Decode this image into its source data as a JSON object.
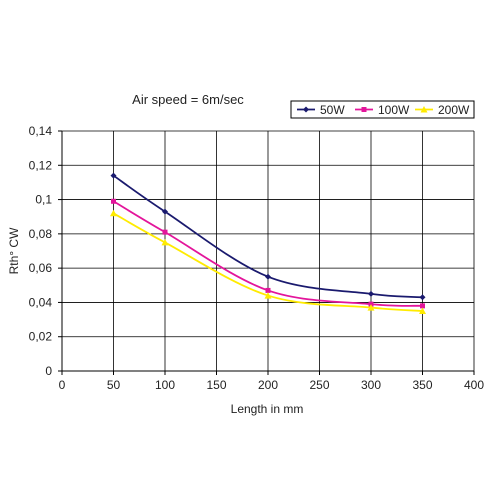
{
  "chart_data": {
    "type": "line",
    "title": "Air speed = 6m/sec",
    "xlabel": "Length in mm",
    "ylabel": "Rth° CW",
    "xlim": [
      0,
      400
    ],
    "ylim": [
      0,
      0.14
    ],
    "x_ticks": [
      "0",
      "50",
      "100",
      "150",
      "200",
      "250",
      "300",
      "350",
      "400"
    ],
    "y_ticks": [
      "0",
      "0,02",
      "0,04",
      "0,06",
      "0,08",
      "0,1",
      "0,12",
      "0,14"
    ],
    "grid": true,
    "legend_position": "top-right",
    "x": [
      50,
      100,
      200,
      300,
      350
    ],
    "series": [
      {
        "name": "50W",
        "color": "#1a1a6e",
        "marker": "diamond",
        "values": [
          0.114,
          0.093,
          0.055,
          0.045,
          0.043
        ]
      },
      {
        "name": "100W",
        "color": "#e3159b",
        "marker": "square",
        "values": [
          0.099,
          0.081,
          0.047,
          0.039,
          0.038
        ]
      },
      {
        "name": "200W",
        "color": "#ffeb00",
        "marker": "triangle",
        "values": [
          0.092,
          0.075,
          0.044,
          0.037,
          0.035
        ]
      }
    ]
  }
}
